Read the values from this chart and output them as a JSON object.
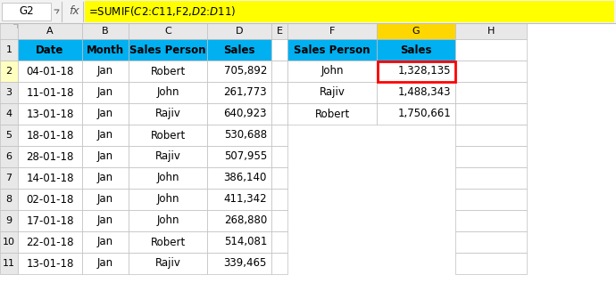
{
  "formula_bar_text": "=SUMIF($C$2:$C$11,F2,$D$2:$D$11)",
  "cell_ref": "G2",
  "header_bg": "#00B0F0",
  "header_text_color": "#000000",
  "selected_col_bg": "#FFD700",
  "selected_cell_border": "#FF0000",
  "main_headers": [
    "Date",
    "Month",
    "Sales Person",
    "Sales"
  ],
  "summary_headers": [
    "Sales Person",
    "Sales"
  ],
  "main_data": [
    [
      "04-01-18",
      "Jan",
      "Robert",
      "705,892"
    ],
    [
      "11-01-18",
      "Jan",
      "John",
      "261,773"
    ],
    [
      "13-01-18",
      "Jan",
      "Rajiv",
      "640,923"
    ],
    [
      "18-01-18",
      "Jan",
      "Robert",
      "530,688"
    ],
    [
      "28-01-18",
      "Jan",
      "Rajiv",
      "507,955"
    ],
    [
      "14-01-18",
      "Jan",
      "John",
      "386,140"
    ],
    [
      "02-01-18",
      "Jan",
      "John",
      "411,342"
    ],
    [
      "17-01-18",
      "Jan",
      "John",
      "268,880"
    ],
    [
      "22-01-18",
      "Jan",
      "Robert",
      "514,081"
    ],
    [
      "13-01-18",
      "Jan",
      "Rajiv",
      "339,465"
    ]
  ],
  "summary_data": [
    [
      "John",
      "1,328,135"
    ],
    [
      "Rajiv",
      "1,488,343"
    ],
    [
      "Robert",
      "1,750,661"
    ]
  ],
  "col_letters": [
    "",
    "A",
    "B",
    "C",
    "D",
    "E",
    "F",
    "G",
    "H"
  ],
  "grid_color": "#BFBFBF",
  "formula_bg": "#FFFF00",
  "cell_bg": "#FFFFFF",
  "col_header_bg": "#E8E8E8",
  "row_header_bg": "#E8E8E8",
  "formula_bar_bg": "#F2F2F2",
  "row2_highlight": "#FFFFC0"
}
